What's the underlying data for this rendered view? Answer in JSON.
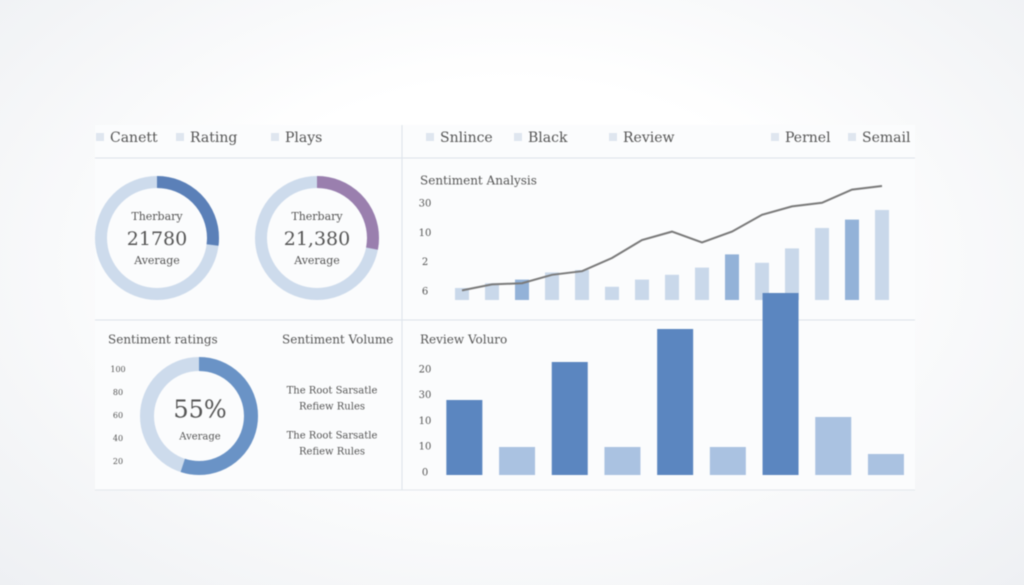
{
  "tabs_left": [
    "Canett",
    "Rating",
    "Plays"
  ],
  "tabs_right": [
    "Snlince",
    "Black",
    "Review",
    "Pernel",
    "Semail"
  ],
  "donuts": [
    {
      "heading": "Therbary",
      "value": "21780",
      "caption": "Average",
      "share": 27,
      "color": "#5b80b8"
    },
    {
      "heading": "Therbary",
      "value": "21,380",
      "caption": "Average",
      "share": 28,
      "color": "#9a7fae"
    }
  ],
  "ratings": {
    "title": "Sentiment ratings",
    "scale_labels": [
      "100",
      "80",
      "60",
      "40",
      "20"
    ],
    "value_label": "55%",
    "share": 55,
    "caption": "Average",
    "color": "#6a93c6"
  },
  "volume": {
    "title": "Sentiment Volume",
    "items": [
      [
        "The Root Sarsatle",
        "Refiew Rules"
      ],
      [
        "The Root Sarsatle",
        "Refiew Rules"
      ]
    ]
  },
  "analysis": {
    "title": "Sentiment Analysis",
    "axis_labels": [
      "30",
      "10",
      "2",
      "6"
    ],
    "ylim": [
      0,
      100
    ],
    "bars": [
      10,
      14,
      17,
      23,
      25,
      11,
      17,
      21,
      27,
      38,
      31,
      43,
      60,
      67,
      75
    ],
    "bar_colors": [
      "#c9d8ea",
      "#c9d8ea",
      "#93b2d8",
      "#c9d8ea",
      "#c9d8ea",
      "#c9d8ea",
      "#c9d8ea",
      "#c9d8ea",
      "#c9d8ea",
      "#93b2d8",
      "#c9d8ea",
      "#c9d8ea",
      "#c9d8ea",
      "#93b2d8",
      "#c9d8ea"
    ],
    "line": [
      8,
      13,
      14,
      21,
      24,
      35,
      50,
      57,
      48,
      57,
      71,
      78,
      81,
      92,
      95
    ],
    "line_color": "#7a7a7a"
  },
  "review": {
    "title": "Review Voluro",
    "axis_labels": [
      "20",
      "30",
      "10",
      "10",
      "0"
    ],
    "ylim": [
      0,
      200
    ],
    "bars": [
      75,
      28,
      113,
      28,
      146,
      28,
      182,
      58,
      21
    ],
    "bar_colors": [
      "#5b86c0",
      "#aac2e1",
      "#5b86c0",
      "#aac2e1",
      "#5b86c0",
      "#aac2e1",
      "#5b86c0",
      "#aac2e1",
      "#aac2e1"
    ]
  }
}
